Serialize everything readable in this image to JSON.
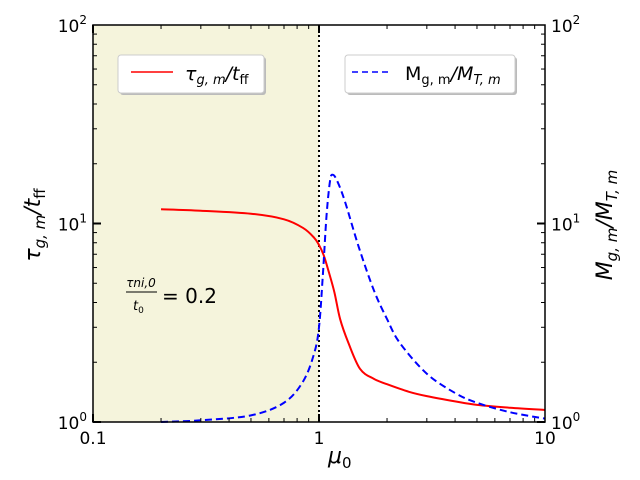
{
  "chart_data": {
    "type": "line",
    "xscale": "log",
    "yscale": "log",
    "xlim": [
      0.1,
      10
    ],
    "ylim": [
      1,
      100
    ],
    "y2lim": [
      1,
      100
    ],
    "xlabel": "μ0",
    "ylabel": "τg,m/tff",
    "y2label": "Mg,m/MT,m",
    "x_ticks": [
      {
        "value": 0.1,
        "label": "0.1"
      },
      {
        "value": 1,
        "label": "1"
      },
      {
        "value": 10,
        "label": "10"
      }
    ],
    "y_ticks": [
      {
        "value": 1,
        "base": "10",
        "exp": "0"
      },
      {
        "value": 10,
        "base": "10",
        "exp": "1"
      },
      {
        "value": 100,
        "base": "10",
        "exp": "2"
      }
    ],
    "shaded_region": {
      "x": [
        0.1,
        1
      ],
      "color": "#f5f4dc"
    },
    "vline": {
      "x": 1,
      "style": "dotted",
      "color": "#000000"
    },
    "grid": false,
    "annotation": {
      "numerator": "τni,0",
      "denominator": "t0",
      "text": "= 0.2"
    },
    "series": [
      {
        "name": "τg,m/tff",
        "axis": "left",
        "color": "#ff0000",
        "style": "solid",
        "x": [
          0.2,
          0.3,
          0.5,
          0.7,
          0.85,
          0.95,
          1.0,
          1.05,
          1.1,
          1.17,
          1.24,
          1.35,
          1.52,
          1.75,
          2.0,
          2.5,
          3.0,
          4.0,
          5.0,
          7.0,
          10.0
        ],
        "y": [
          11.8,
          11.6,
          11.2,
          10.5,
          9.5,
          8.5,
          7.8,
          6.9,
          5.8,
          4.5,
          3.3,
          2.5,
          1.85,
          1.65,
          1.55,
          1.42,
          1.35,
          1.27,
          1.22,
          1.18,
          1.15
        ]
      },
      {
        "name": "Mg,m/MT,m",
        "axis": "right",
        "color": "#0000ff",
        "style": "dashed",
        "x": [
          0.2,
          0.3,
          0.5,
          0.7,
          0.85,
          0.95,
          1.0,
          1.04,
          1.08,
          1.12,
          1.15,
          1.2,
          1.3,
          1.5,
          1.75,
          2.0,
          2.28,
          3.0,
          4.0,
          5.0,
          7.0,
          10.0
        ],
        "y": [
          1.0,
          1.02,
          1.08,
          1.25,
          1.6,
          2.2,
          3.0,
          5.5,
          11.0,
          16.5,
          17.6,
          16.5,
          13.0,
          7.6,
          4.6,
          3.3,
          2.5,
          1.75,
          1.4,
          1.25,
          1.12,
          1.04
        ]
      }
    ]
  }
}
